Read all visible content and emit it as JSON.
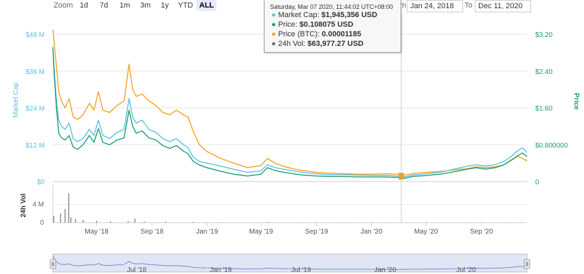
{
  "toolbar": {
    "zoom_label": "Zoom",
    "ranges": [
      "1d",
      "7d",
      "1m",
      "3m",
      "1y",
      "YTD",
      "ALL"
    ],
    "active_range": "ALL",
    "from_label": "m",
    "from_date": "Jan 24, 2018",
    "to_label": "To",
    "to_date": "Dec 11, 2020"
  },
  "tooltip": {
    "header": "Saturday, Mar 07 2020, 11:44:02 UTC+08:00",
    "rows": [
      {
        "label": "Market Cap:",
        "value": "$1,945,356 USD",
        "color": "#5bc0de"
      },
      {
        "label": "Price:",
        "value": "$0.108075 USD",
        "color": "#1a9c73"
      },
      {
        "label": "Price (BTC):",
        "value": "0.00001185",
        "color": "#f7a01f"
      },
      {
        "label": "24h Vol:",
        "value": "$63,977.27 USD",
        "color": "#707070"
      }
    ]
  },
  "colors": {
    "market_cap": "#5bc0de",
    "price": "#1a9c73",
    "price_btc": "#f7a01f",
    "volume": "#8f8f8f",
    "navigator_fill": "#ccd6eb"
  },
  "chart_data": {
    "type": "line",
    "left_axis": {
      "title": "Market Cap",
      "ticks": [
        "$0",
        "$12 M",
        "$24 M",
        "$36 M",
        "$48 M"
      ],
      "range": [
        0,
        48000000
      ]
    },
    "right_axis": {
      "title": "Price",
      "ticks": [
        "0",
        "$0.800000",
        "$1.60",
        "$2.40",
        "$3.20"
      ],
      "range": [
        0,
        3.2
      ]
    },
    "volume_axis": {
      "title": "24h Vol",
      "ticks": [
        "0",
        "4 M"
      ],
      "range": [
        0,
        8000000
      ]
    },
    "x_ticks": [
      "May '18",
      "Sep '18",
      "Jan '19",
      "May '19",
      "Sep '19",
      "Jan '20",
      "May '20",
      "Sep '20"
    ],
    "navigator_ticks": [
      "Jul '18",
      "Jan '19",
      "Jul '19",
      "Jan '20",
      "Jul '20"
    ],
    "x_range": [
      "2018-01-24",
      "2020-12-11"
    ],
    "crosshair_date": "2020-03-07",
    "series": [
      {
        "name": "Market Cap",
        "axis": "left",
        "x": [
          "2018-01-24",
          "2018-01-27",
          "2018-02-01",
          "2018-02-06",
          "2018-02-12",
          "2018-02-20",
          "2018-03-01",
          "2018-03-10",
          "2018-03-20",
          "2018-04-01",
          "2018-04-15",
          "2018-04-25",
          "2018-05-05",
          "2018-05-15",
          "2018-05-30",
          "2018-06-15",
          "2018-07-01",
          "2018-07-12",
          "2018-07-20",
          "2018-07-28",
          "2018-08-10",
          "2018-08-25",
          "2018-09-10",
          "2018-09-25",
          "2018-10-10",
          "2018-10-25",
          "2018-11-10",
          "2018-11-20",
          "2018-12-01",
          "2018-12-15",
          "2019-01-01",
          "2019-02-01",
          "2019-03-01",
          "2019-04-01",
          "2019-05-01",
          "2019-05-15",
          "2019-06-01",
          "2019-06-20",
          "2019-07-10",
          "2019-08-01",
          "2019-09-01",
          "2019-10-01",
          "2019-11-01",
          "2019-12-01",
          "2020-01-01",
          "2020-02-01",
          "2020-03-01",
          "2020-03-07",
          "2020-03-15",
          "2020-04-01",
          "2020-05-01",
          "2020-06-01",
          "2020-07-01",
          "2020-08-01",
          "2020-08-20",
          "2020-09-10",
          "2020-10-01",
          "2020-10-20",
          "2020-11-05",
          "2020-11-20",
          "2020-12-01",
          "2020-12-11"
        ],
        "values": [
          44000000,
          36000000,
          26000000,
          20000000,
          18000000,
          17000000,
          19000000,
          14000000,
          13000000,
          14000000,
          17000000,
          15000000,
          20000000,
          15000000,
          14000000,
          16000000,
          17000000,
          27000000,
          21000000,
          19000000,
          20000000,
          17000000,
          16000000,
          14000000,
          13000000,
          14000000,
          12000000,
          11000000,
          8000000,
          6500000,
          6000000,
          5000000,
          4000000,
          3000000,
          3500000,
          5500000,
          4500000,
          4000000,
          3500000,
          3000000,
          2500000,
          2200000,
          2200000,
          2100000,
          2000000,
          2000000,
          1800000,
          1945356,
          1500000,
          2100000,
          2500000,
          3000000,
          4000000,
          5000000,
          5500000,
          5000000,
          5500000,
          6500000,
          8000000,
          10000000,
          11000000,
          9500000
        ]
      },
      {
        "name": "Price",
        "axis": "right",
        "x": [
          "2018-01-24",
          "2018-01-27",
          "2018-02-01",
          "2018-02-06",
          "2018-02-12",
          "2018-02-20",
          "2018-03-01",
          "2018-03-10",
          "2018-03-20",
          "2018-04-01",
          "2018-04-15",
          "2018-04-25",
          "2018-05-05",
          "2018-05-15",
          "2018-05-30",
          "2018-06-15",
          "2018-07-01",
          "2018-07-12",
          "2018-07-20",
          "2018-07-28",
          "2018-08-10",
          "2018-08-25",
          "2018-09-10",
          "2018-09-25",
          "2018-10-10",
          "2018-10-25",
          "2018-11-10",
          "2018-11-20",
          "2018-12-01",
          "2018-12-15",
          "2019-01-01",
          "2019-02-01",
          "2019-03-01",
          "2019-04-01",
          "2019-05-01",
          "2019-05-15",
          "2019-06-01",
          "2019-06-20",
          "2019-07-10",
          "2019-08-01",
          "2019-09-01",
          "2019-10-01",
          "2019-11-01",
          "2019-12-01",
          "2020-01-01",
          "2020-02-01",
          "2020-03-01",
          "2020-03-07",
          "2020-03-15",
          "2020-04-01",
          "2020-05-01",
          "2020-06-01",
          "2020-07-01",
          "2020-08-01",
          "2020-08-20",
          "2020-09-10",
          "2020-10-01",
          "2020-10-20",
          "2020-11-05",
          "2020-11-20",
          "2020-12-01",
          "2020-12-11"
        ],
        "values": [
          2.9,
          2.3,
          1.6,
          1.05,
          0.95,
          0.9,
          1.0,
          0.75,
          0.7,
          0.8,
          1.0,
          0.85,
          1.15,
          0.85,
          0.8,
          0.9,
          0.95,
          1.55,
          1.2,
          1.05,
          1.1,
          0.95,
          0.9,
          0.78,
          0.72,
          0.78,
          0.66,
          0.6,
          0.44,
          0.36,
          0.3,
          0.22,
          0.16,
          0.12,
          0.16,
          0.3,
          0.24,
          0.2,
          0.17,
          0.14,
          0.12,
          0.11,
          0.11,
          0.1,
          0.1,
          0.1,
          0.09,
          0.108075,
          0.07,
          0.11,
          0.13,
          0.16,
          0.21,
          0.27,
          0.3,
          0.27,
          0.3,
          0.36,
          0.46,
          0.56,
          0.62,
          0.54
        ]
      },
      {
        "name": "Price (BTC)",
        "axis": "right",
        "x": [
          "2018-01-24",
          "2018-01-27",
          "2018-02-01",
          "2018-02-06",
          "2018-02-12",
          "2018-02-20",
          "2018-03-01",
          "2018-03-10",
          "2018-03-20",
          "2018-04-01",
          "2018-04-15",
          "2018-04-25",
          "2018-05-05",
          "2018-05-15",
          "2018-05-30",
          "2018-06-15",
          "2018-07-01",
          "2018-07-12",
          "2018-07-20",
          "2018-07-28",
          "2018-08-10",
          "2018-08-25",
          "2018-09-10",
          "2018-09-25",
          "2018-10-10",
          "2018-10-25",
          "2018-11-10",
          "2018-11-20",
          "2018-12-01",
          "2018-12-15",
          "2019-01-01",
          "2019-02-01",
          "2019-03-01",
          "2019-04-01",
          "2019-05-01",
          "2019-05-15",
          "2019-06-01",
          "2019-06-20",
          "2019-07-10",
          "2019-08-01",
          "2019-09-01",
          "2019-10-01",
          "2019-11-01",
          "2019-12-01",
          "2020-01-01",
          "2020-02-01",
          "2020-03-01",
          "2020-03-07",
          "2020-03-15",
          "2020-04-01",
          "2020-05-01",
          "2020-06-01",
          "2020-07-01",
          "2020-08-01",
          "2020-08-20",
          "2020-09-10",
          "2020-10-01",
          "2020-10-20",
          "2020-11-05",
          "2020-11-20",
          "2020-12-01",
          "2020-12-11"
        ],
        "values": [
          3.3,
          3.0,
          2.5,
          1.95,
          1.75,
          1.6,
          1.8,
          1.4,
          1.35,
          1.45,
          1.7,
          1.55,
          1.95,
          1.55,
          1.5,
          1.65,
          1.75,
          2.55,
          2.0,
          1.85,
          1.9,
          1.75,
          1.65,
          1.5,
          1.45,
          1.55,
          1.45,
          1.4,
          1.1,
          0.8,
          0.65,
          0.5,
          0.4,
          0.3,
          0.35,
          0.5,
          0.4,
          0.33,
          0.28,
          0.24,
          0.2,
          0.18,
          0.17,
          0.16,
          0.16,
          0.17,
          0.16,
          0.1185,
          0.14,
          0.17,
          0.2,
          0.22,
          0.25,
          0.28,
          0.32,
          0.3,
          0.32,
          0.36,
          0.45,
          0.55,
          0.5,
          0.45
        ]
      }
    ],
    "volume": {
      "x": [
        "2018-01-26",
        "2018-02-10",
        "2018-02-20",
        "2018-02-28",
        "2018-03-05",
        "2018-03-15",
        "2018-04-01",
        "2018-05-01",
        "2018-06-01",
        "2018-07-10",
        "2018-07-25",
        "2018-08-15",
        "2018-10-01",
        "2018-12-01",
        "2019-02-01",
        "2019-05-15",
        "2019-08-01",
        "2019-11-01",
        "2020-02-01",
        "2020-05-01",
        "2020-08-01",
        "2020-11-01"
      ],
      "values": [
        1500000,
        2000000,
        3000000,
        6500000,
        1200000,
        800000,
        600000,
        400000,
        300000,
        300000,
        900000,
        250000,
        200000,
        150000,
        100000,
        150000,
        80000,
        60000,
        64000,
        60000,
        70000,
        90000
      ]
    }
  }
}
